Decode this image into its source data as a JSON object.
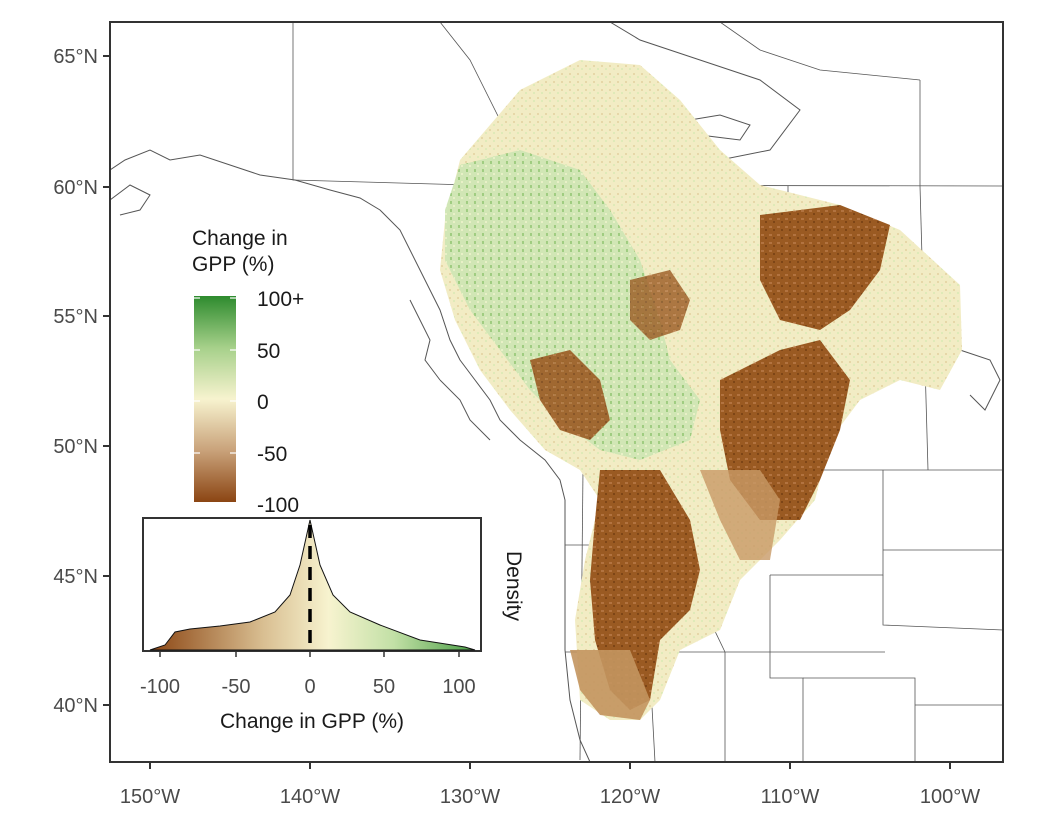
{
  "map": {
    "lat_ticks": [
      {
        "label": "65°N"
      },
      {
        "label": "60°N"
      },
      {
        "label": "55°N"
      },
      {
        "label": "50°N"
      },
      {
        "label": "45°N"
      },
      {
        "label": "40°N"
      }
    ],
    "lon_ticks": [
      {
        "label": "150°W"
      },
      {
        "label": "140°W"
      },
      {
        "label": "130°W"
      },
      {
        "label": "120°W"
      },
      {
        "label": "110°W"
      },
      {
        "label": "100°W"
      }
    ]
  },
  "legend": {
    "title_line1": "Change in",
    "title_line2": "GPP (%)",
    "labels": [
      "100+",
      "50",
      "0",
      "-50",
      "-100"
    ],
    "colors": {
      "high": "#2e8b2e",
      "mid": "#f7f3cf",
      "low": "#8b4513"
    }
  },
  "inset": {
    "xlabel": "Change in GPP (%)",
    "ylabel": "Density",
    "x_ticks": [
      "-100",
      "-50",
      "0",
      "50",
      "100"
    ]
  },
  "colors": {
    "axis": "#333333",
    "border": "#555555",
    "decline": "#9a5a22",
    "neutral": "#f3efc6",
    "gain": "#b8d99a"
  }
}
